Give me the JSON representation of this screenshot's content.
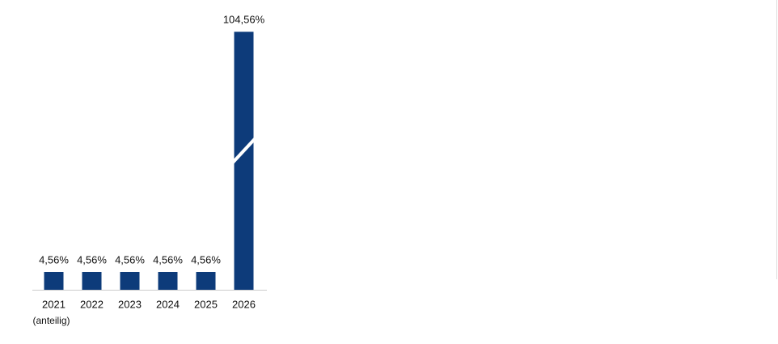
{
  "chart_data": {
    "type": "bar",
    "categories": [
      "2021",
      "2022",
      "2023",
      "2024",
      "2025",
      "2026"
    ],
    "sublabels": [
      "(anteilig)",
      null,
      null,
      null,
      null,
      null
    ],
    "values": [
      4.56,
      4.56,
      4.56,
      4.56,
      4.56,
      104.56
    ],
    "value_labels": [
      "4,56%",
      "4,56%",
      "4,56%",
      "4,56%",
      "4,56%",
      "104,56%"
    ],
    "color": "#0d3b7a",
    "ylim": [
      0,
      110
    ],
    "y_break": [
      35,
      73.5
    ]
  }
}
